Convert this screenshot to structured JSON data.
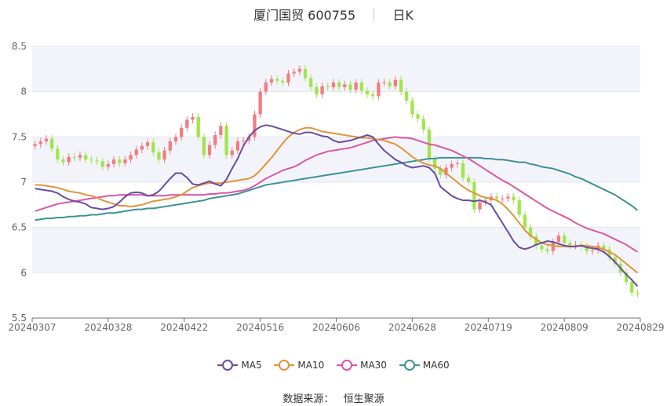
{
  "header": {
    "title": "厦门国贸 600755",
    "period": "日K"
  },
  "footer": {
    "source_label": "数据来源：",
    "source_name": "恒生聚源"
  },
  "colors": {
    "up": "#f07c82",
    "down": "#a0e54b",
    "ma5": "#6a4c9c",
    "ma10": "#e0953a",
    "ma30": "#d958a6",
    "ma60": "#3d9199",
    "band": "#f3f4fa",
    "grid": "#e0e6f1"
  },
  "chart_data": {
    "type": "candlestick",
    "y_ticks": [
      "8.5",
      "8",
      "7.5",
      "7",
      "6.5",
      "6",
      "5.5"
    ],
    "ylim": [
      5.5,
      8.5
    ],
    "x_tick_labels": [
      "20240307",
      "20240328",
      "20240422",
      "20240516",
      "20240606",
      "20240628",
      "20240719",
      "20240809",
      "20240829"
    ],
    "legend": [
      "MA5",
      "MA10",
      "MA30",
      "MA60"
    ],
    "close": [
      7.42,
      7.45,
      7.48,
      7.37,
      7.25,
      7.22,
      7.28,
      7.27,
      7.3,
      7.25,
      7.24,
      7.23,
      7.17,
      7.2,
      7.25,
      7.21,
      7.25,
      7.3,
      7.36,
      7.4,
      7.44,
      7.33,
      7.25,
      7.35,
      7.45,
      7.5,
      7.6,
      7.69,
      7.72,
      7.5,
      7.3,
      7.41,
      7.52,
      7.62,
      7.3,
      7.35,
      7.45,
      7.46,
      7.5,
      7.75,
      8.0,
      8.1,
      8.14,
      8.12,
      8.1,
      8.2,
      8.22,
      8.25,
      8.15,
      8.05,
      7.97,
      8.06,
      8.05,
      8.1,
      8.05,
      8.08,
      8.02,
      8.1,
      8.01,
      7.97,
      7.95,
      8.1,
      8.1,
      8.06,
      8.13,
      8.0,
      7.9,
      7.75,
      7.7,
      7.58,
      7.25,
      7.15,
      7.08,
      7.16,
      7.2,
      7.21,
      7.05,
      7.0,
      6.7,
      6.78,
      6.8,
      6.84,
      6.82,
      6.82,
      6.84,
      6.8,
      6.64,
      6.5,
      6.4,
      6.3,
      6.26,
      6.24,
      6.34,
      6.41,
      6.33,
      6.3,
      6.31,
      6.29,
      6.24,
      6.25,
      6.3,
      6.26,
      6.17,
      6.1,
      6.0,
      5.9,
      5.78,
      5.77
    ],
    "ma5": [
      6.93,
      6.92,
      6.91,
      6.9,
      6.88,
      6.84,
      6.81,
      6.79,
      6.78,
      6.76,
      6.72,
      6.71,
      6.7,
      6.71,
      6.73,
      6.78,
      6.84,
      6.88,
      6.89,
      6.88,
      6.85,
      6.86,
      6.9,
      6.97,
      7.04,
      7.1,
      7.1,
      7.05,
      6.98,
      6.97,
      6.99,
      7.01,
      6.98,
      6.96,
      7.03,
      7.15,
      7.26,
      7.4,
      7.5,
      7.57,
      7.61,
      7.63,
      7.62,
      7.6,
      7.58,
      7.56,
      7.54,
      7.53,
      7.55,
      7.55,
      7.53,
      7.51,
      7.5,
      7.46,
      7.44,
      7.45,
      7.46,
      7.48,
      7.5,
      7.52,
      7.5,
      7.42,
      7.35,
      7.3,
      7.25,
      7.22,
      7.18,
      7.16,
      7.17,
      7.18,
      7.16,
      7.1,
      6.95,
      6.9,
      6.85,
      6.82,
      6.8,
      6.8,
      6.79,
      6.8,
      6.78,
      6.75,
      6.65,
      6.55,
      6.45,
      6.35,
      6.28,
      6.26,
      6.28,
      6.31,
      6.33,
      6.35,
      6.34,
      6.32,
      6.3,
      6.29,
      6.29,
      6.3,
      6.28,
      6.27,
      6.26,
      6.23,
      6.18,
      6.12,
      6.05,
      5.98,
      5.92,
      5.85
    ],
    "ma10": [
      6.97,
      6.97,
      6.96,
      6.95,
      6.94,
      6.92,
      6.9,
      6.89,
      6.88,
      6.86,
      6.85,
      6.83,
      6.8,
      6.78,
      6.76,
      6.74,
      6.74,
      6.73,
      6.74,
      6.75,
      6.77,
      6.79,
      6.8,
      6.81,
      6.82,
      6.84,
      6.86,
      6.9,
      6.94,
      6.96,
      6.98,
      6.99,
      6.99,
      6.99,
      7.0,
      7.01,
      7.02,
      7.03,
      7.04,
      7.07,
      7.13,
      7.2,
      7.27,
      7.35,
      7.43,
      7.5,
      7.55,
      7.58,
      7.6,
      7.6,
      7.58,
      7.56,
      7.55,
      7.54,
      7.53,
      7.52,
      7.51,
      7.5,
      7.49,
      7.49,
      7.48,
      7.47,
      7.46,
      7.44,
      7.42,
      7.38,
      7.33,
      7.28,
      7.24,
      7.21,
      7.19,
      7.18,
      7.15,
      7.1,
      7.05,
      7.0,
      6.95,
      6.91,
      6.88,
      6.85,
      6.83,
      6.82,
      6.8,
      6.76,
      6.7,
      6.63,
      6.55,
      6.47,
      6.41,
      6.37,
      6.33,
      6.31,
      6.3,
      6.29,
      6.29,
      6.29,
      6.29,
      6.3,
      6.3,
      6.29,
      6.28,
      6.26,
      6.23,
      6.2,
      6.15,
      6.1,
      6.05,
      6.0
    ],
    "ma30": [
      6.68,
      6.7,
      6.72,
      6.74,
      6.76,
      6.77,
      6.78,
      6.79,
      6.8,
      6.81,
      6.82,
      6.83,
      6.84,
      6.85,
      6.85,
      6.86,
      6.86,
      6.86,
      6.86,
      6.86,
      6.85,
      6.85,
      6.85,
      6.85,
      6.86,
      6.86,
      6.86,
      6.86,
      6.86,
      6.86,
      6.86,
      6.87,
      6.87,
      6.88,
      6.88,
      6.89,
      6.9,
      6.91,
      6.93,
      6.96,
      7.0,
      7.04,
      7.07,
      7.1,
      7.13,
      7.15,
      7.17,
      7.2,
      7.24,
      7.27,
      7.3,
      7.32,
      7.34,
      7.35,
      7.36,
      7.37,
      7.38,
      7.4,
      7.42,
      7.44,
      7.46,
      7.47,
      7.48,
      7.49,
      7.5,
      7.49,
      7.49,
      7.48,
      7.46,
      7.44,
      7.42,
      7.41,
      7.39,
      7.37,
      7.35,
      7.32,
      7.29,
      7.26,
      7.22,
      7.18,
      7.14,
      7.1,
      7.06,
      7.02,
      6.99,
      6.95,
      6.91,
      6.87,
      6.83,
      6.79,
      6.75,
      6.71,
      6.68,
      6.65,
      6.62,
      6.59,
      6.55,
      6.52,
      6.49,
      6.47,
      6.45,
      6.43,
      6.4,
      6.37,
      6.34,
      6.31,
      6.27,
      6.23
    ],
    "ma60": [
      6.58,
      6.59,
      6.6,
      6.6,
      6.61,
      6.61,
      6.62,
      6.62,
      6.63,
      6.63,
      6.64,
      6.64,
      6.65,
      6.66,
      6.66,
      6.67,
      6.68,
      6.69,
      6.7,
      6.7,
      6.71,
      6.71,
      6.72,
      6.73,
      6.74,
      6.75,
      6.76,
      6.77,
      6.78,
      6.79,
      6.8,
      6.82,
      6.83,
      6.84,
      6.85,
      6.86,
      6.87,
      6.89,
      6.91,
      6.93,
      6.95,
      6.97,
      6.98,
      6.99,
      7.0,
      7.01,
      7.02,
      7.03,
      7.04,
      7.05,
      7.06,
      7.07,
      7.08,
      7.09,
      7.1,
      7.11,
      7.12,
      7.13,
      7.14,
      7.15,
      7.16,
      7.17,
      7.18,
      7.19,
      7.2,
      7.21,
      7.22,
      7.23,
      7.24,
      7.25,
      7.26,
      7.26,
      7.27,
      7.27,
      7.27,
      7.27,
      7.27,
      7.27,
      7.27,
      7.27,
      7.26,
      7.26,
      7.25,
      7.25,
      7.24,
      7.23,
      7.22,
      7.22,
      7.2,
      7.19,
      7.17,
      7.16,
      7.15,
      7.13,
      7.11,
      7.09,
      7.06,
      7.04,
      7.01,
      6.98,
      6.95,
      6.92,
      6.89,
      6.86,
      6.82,
      6.78,
      6.74,
      6.69
    ]
  }
}
